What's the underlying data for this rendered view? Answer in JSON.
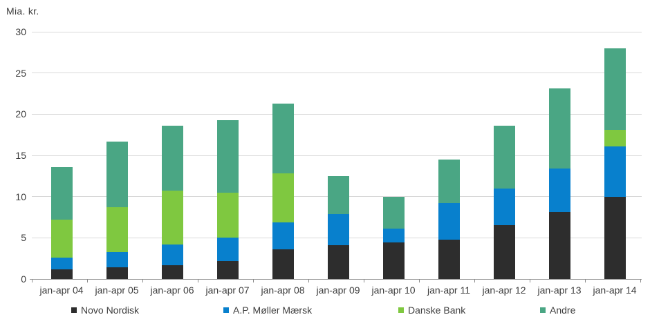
{
  "title": "Mia. kr.",
  "chart_data": {
    "type": "bar",
    "stacked": true,
    "title": "Mia. kr.",
    "xlabel": "",
    "ylabel": "Mia. kr.",
    "ylim": [
      0,
      30
    ],
    "yticks": [
      0,
      5,
      10,
      15,
      20,
      25,
      30
    ],
    "grid": "horizontal",
    "legend_position": "bottom",
    "categories": [
      "jan-apr 04",
      "jan-apr 05",
      "jan-apr 06",
      "jan-apr 07",
      "jan-apr 08",
      "jan-apr 09",
      "jan-apr 10",
      "jan-apr 11",
      "jan-apr 12",
      "jan-apr 13",
      "jan-apr 14"
    ],
    "series": [
      {
        "name": "Novo Nordisk",
        "color": "#2d2d2d",
        "values": [
          1.2,
          1.4,
          1.7,
          2.2,
          3.6,
          4.1,
          4.4,
          4.8,
          6.5,
          8.1,
          10.0
        ]
      },
      {
        "name": "A.P. Møller Mærsk",
        "color": "#0880cd",
        "values": [
          1.4,
          1.9,
          2.5,
          2.8,
          3.3,
          3.8,
          1.7,
          4.4,
          4.5,
          5.3,
          6.1
        ]
      },
      {
        "name": "Danske Bank",
        "color": "#7fc840",
        "values": [
          4.6,
          5.4,
          6.5,
          5.5,
          5.9,
          0.0,
          0.0,
          0.0,
          0.0,
          0.0,
          2.0
        ]
      },
      {
        "name": "Andre",
        "color": "#4aa684",
        "values": [
          6.4,
          8.0,
          7.9,
          8.8,
          8.5,
          4.6,
          3.9,
          5.3,
          7.6,
          9.7,
          9.9
        ]
      }
    ],
    "totals": [
      13.6,
      16.7,
      18.6,
      19.3,
      21.3,
      12.5,
      10.0,
      14.5,
      18.6,
      23.1,
      28.0
    ]
  },
  "colors": {
    "gridline": "#d8d8d8",
    "axis": "#9e9e9e",
    "text": "#3d3d3d",
    "background": "#ffffff"
  }
}
